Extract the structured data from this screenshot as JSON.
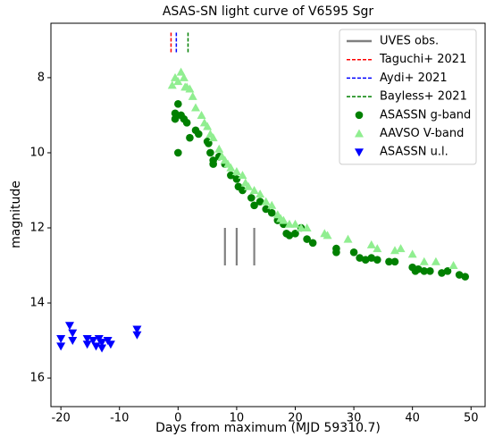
{
  "chart_data": {
    "type": "scatter",
    "title": "ASAS-SN light curve of V6595 Sgr",
    "xlabel": "Days from maximum (MJD 59310.7)",
    "ylabel": "magnitude",
    "xlim": [
      -21.7,
      52.4
    ],
    "ylim": [
      16.76,
      6.55
    ],
    "xticks": [
      -20,
      -10,
      0,
      10,
      20,
      30,
      40,
      50
    ],
    "yticks": [
      8,
      10,
      12,
      14,
      16
    ],
    "legend": "upper right",
    "references": [
      {
        "name": "UVES obs.",
        "color": "#808080",
        "dash": "solid",
        "x": [
          8,
          10,
          13
        ],
        "y_range": [
          12,
          13
        ]
      },
      {
        "name": "Taguchi+ 2021",
        "color": "#ff0000",
        "dash": "dashed",
        "x": [
          -1.2
        ],
        "y_range": [
          6.8,
          7.35
        ]
      },
      {
        "name": "Aydi+ 2021",
        "color": "#0000ff",
        "dash": "dashed",
        "x": [
          -0.3
        ],
        "y_range": [
          6.8,
          7.35
        ]
      },
      {
        "name": "Bayless+ 2021",
        "color": "#008000",
        "dash": "dashed",
        "x": [
          1.7
        ],
        "y_range": [
          6.8,
          7.35
        ]
      }
    ],
    "series": [
      {
        "name": "ASASSN g-band",
        "color": "#008000",
        "marker": "circle",
        "x": [
          -0.5,
          -0.5,
          0,
          0,
          0.5,
          1,
          1.5,
          2,
          3,
          3.5,
          5,
          5.2,
          5.5,
          6,
          6,
          7,
          8,
          9,
          10,
          10.3,
          11,
          12.5,
          13,
          14,
          15,
          16,
          17,
          18,
          18.5,
          19,
          20,
          21,
          22,
          23,
          27,
          27,
          30,
          31,
          32,
          33,
          34,
          36,
          37,
          40,
          40.5,
          41,
          42,
          43,
          45,
          46,
          48,
          49
        ],
        "values": [
          8.95,
          9.1,
          8.7,
          10.0,
          9.0,
          9.1,
          9.2,
          9.6,
          9.4,
          9.5,
          9.7,
          9.75,
          10.0,
          10.2,
          10.3,
          10.1,
          10.3,
          10.6,
          10.7,
          10.9,
          11.0,
          11.2,
          11.4,
          11.3,
          11.5,
          11.6,
          11.8,
          11.9,
          12.15,
          12.2,
          12.15,
          12.0,
          12.3,
          12.4,
          12.55,
          12.65,
          12.65,
          12.8,
          12.85,
          12.8,
          12.85,
          12.9,
          12.9,
          13.05,
          13.15,
          13.1,
          13.15,
          13.15,
          13.2,
          13.15,
          13.25,
          13.3
        ]
      },
      {
        "name": "AAVSO V-band",
        "color": "#90ee90",
        "marker": "triangle-up",
        "x": [
          -1,
          -0.5,
          0,
          0.5,
          1,
          1.2,
          1.5,
          2,
          2.5,
          3,
          4,
          4.5,
          5,
          5.5,
          6,
          7,
          7.5,
          8,
          8.5,
          9,
          10,
          11,
          11.5,
          12,
          13,
          14,
          15,
          16,
          17,
          17.5,
          18,
          19,
          20,
          21,
          22,
          25,
          25.5,
          29,
          33,
          34,
          37,
          38,
          40,
          42,
          44,
          47
        ],
        "values": [
          8.2,
          8.0,
          8.1,
          7.85,
          8.0,
          8.25,
          8.25,
          8.3,
          8.5,
          8.8,
          9.0,
          9.2,
          9.3,
          9.5,
          9.6,
          9.9,
          10.1,
          10.2,
          10.3,
          10.4,
          10.5,
          10.6,
          10.8,
          10.9,
          11.0,
          11.1,
          11.3,
          11.4,
          11.65,
          11.75,
          11.8,
          11.9,
          11.9,
          12.0,
          12.0,
          12.15,
          12.2,
          12.3,
          12.45,
          12.55,
          12.6,
          12.55,
          12.7,
          12.9,
          12.9,
          13.0
        ]
      },
      {
        "name": "ASASSN u.l.",
        "color": "#0000ff",
        "marker": "triangle-down",
        "x": [
          -20,
          -20,
          -18.5,
          -18,
          -18,
          -15.5,
          -15.5,
          -14.5,
          -14,
          -13.5,
          -13,
          -13,
          -12,
          -11.5,
          -7,
          -7
        ],
        "values": [
          14.95,
          15.15,
          14.6,
          14.8,
          15.0,
          14.95,
          15.1,
          15.0,
          15.15,
          14.95,
          15.2,
          15.05,
          15.0,
          15.1,
          14.7,
          14.85
        ]
      }
    ]
  }
}
